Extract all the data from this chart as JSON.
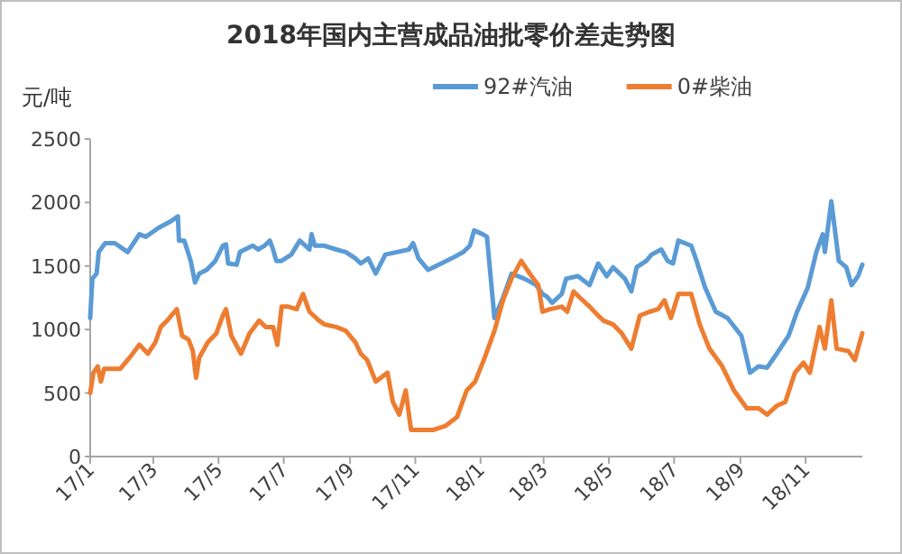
{
  "chart_data": {
    "type": "line",
    "title": "2018年国内主营成品油批零价差走势图",
    "ylabel": "元/吨",
    "legend": "top right",
    "grid": false,
    "marker": "none",
    "line_style": "solid",
    "xlim": [
      "2017-01-01",
      "2018-12-24"
    ],
    "ylim": [
      0,
      2500
    ],
    "yticks": [
      0,
      500,
      1000,
      1500,
      2000,
      2500
    ],
    "xticks": [
      {
        "value": "2017-01-01",
        "label": "17/1"
      },
      {
        "value": "2017-03-01",
        "label": "17/3"
      },
      {
        "value": "2017-05-01",
        "label": "17/5"
      },
      {
        "value": "2017-07-01",
        "label": "17/7"
      },
      {
        "value": "2017-09-01",
        "label": "17/9"
      },
      {
        "value": "2017-11-01",
        "label": "17/11"
      },
      {
        "value": "2018-01-01",
        "label": "18/1"
      },
      {
        "value": "2018-03-01",
        "label": "18/3"
      },
      {
        "value": "2018-05-01",
        "label": "18/5"
      },
      {
        "value": "2018-07-01",
        "label": "18/7"
      },
      {
        "value": "2018-09-01",
        "label": "18/9"
      },
      {
        "value": "2018-11-01",
        "label": "18/11"
      }
    ],
    "series": [
      {
        "name": "92#汽油",
        "color": "#5b9bd5",
        "x": [
          "2017-01-01",
          "2017-01-03",
          "2017-01-07",
          "2017-01-09",
          "2017-01-15",
          "2017-01-24",
          "2017-02-05",
          "2017-02-16",
          "2017-02-22",
          "2017-03-06",
          "2017-03-17",
          "2017-03-24",
          "2017-03-25",
          "2017-03-30",
          "2017-04-05",
          "2017-04-09",
          "2017-04-13",
          "2017-04-20",
          "2017-04-28",
          "2017-05-05",
          "2017-05-08",
          "2017-05-10",
          "2017-05-18",
          "2017-05-21",
          "2017-06-02",
          "2017-06-07",
          "2017-06-13",
          "2017-06-18",
          "2017-06-21",
          "2017-06-24",
          "2017-06-29",
          "2017-07-08",
          "2017-07-16",
          "2017-07-25",
          "2017-07-27",
          "2017-07-30",
          "2017-08-08",
          "2017-08-19",
          "2017-08-28",
          "2017-09-06",
          "2017-09-11",
          "2017-09-18",
          "2017-09-25",
          "2017-10-04",
          "2017-10-15",
          "2017-10-26",
          "2017-10-30",
          "2017-11-04",
          "2017-11-13",
          "2017-11-18",
          "2017-12-05",
          "2017-12-16",
          "2017-12-22",
          "2017-12-26",
          "2018-01-03",
          "2018-01-07",
          "2018-01-14",
          "2018-01-22",
          "2018-01-30",
          "2018-02-11",
          "2018-02-22",
          "2018-02-28",
          "2018-03-04",
          "2018-03-09",
          "2018-03-18",
          "2018-03-22",
          "2018-04-02",
          "2018-04-13",
          "2018-04-21",
          "2018-04-29",
          "2018-05-05",
          "2018-05-16",
          "2018-05-22",
          "2018-05-27",
          "2018-06-05",
          "2018-06-10",
          "2018-06-19",
          "2018-06-25",
          "2018-06-30",
          "2018-07-05",
          "2018-07-17",
          "2018-07-22",
          "2018-07-30",
          "2018-08-09",
          "2018-08-20",
          "2018-09-02",
          "2018-09-10",
          "2018-09-18",
          "2018-09-26",
          "2018-10-05",
          "2018-10-16",
          "2018-10-24",
          "2018-11-03",
          "2018-11-11",
          "2018-11-17",
          "2018-11-19",
          "2018-11-25",
          "2018-12-02",
          "2018-12-09",
          "2018-12-14",
          "2018-12-20",
          "2018-12-24"
        ],
        "values": [
          1090,
          1400,
          1440,
          1610,
          1680,
          1680,
          1610,
          1750,
          1730,
          1800,
          1850,
          1890,
          1700,
          1700,
          1540,
          1370,
          1440,
          1470,
          1540,
          1660,
          1670,
          1520,
          1510,
          1610,
          1660,
          1630,
          1660,
          1700,
          1630,
          1540,
          1540,
          1590,
          1700,
          1630,
          1750,
          1660,
          1660,
          1630,
          1610,
          1560,
          1520,
          1560,
          1440,
          1590,
          1610,
          1630,
          1680,
          1560,
          1470,
          1490,
          1560,
          1610,
          1660,
          1780,
          1750,
          1730,
          1090,
          1250,
          1440,
          1400,
          1350,
          1280,
          1260,
          1210,
          1280,
          1400,
          1420,
          1350,
          1520,
          1420,
          1490,
          1400,
          1300,
          1490,
          1540,
          1590,
          1630,
          1540,
          1520,
          1700,
          1660,
          1540,
          1330,
          1140,
          1090,
          950,
          660,
          710,
          700,
          810,
          950,
          1140,
          1330,
          1610,
          1750,
          1610,
          2010,
          1540,
          1490,
          1350,
          1420,
          1510
        ]
      },
      {
        "name": "0#柴油",
        "color": "#ed7d31",
        "x": [
          "2017-01-01",
          "2017-01-04",
          "2017-01-08",
          "2017-01-11",
          "2017-01-14",
          "2017-01-18",
          "2017-01-29",
          "2017-02-07",
          "2017-02-16",
          "2017-02-24",
          "2017-03-03",
          "2017-03-08",
          "2017-03-14",
          "2017-03-18",
          "2017-03-23",
          "2017-03-28",
          "2017-04-03",
          "2017-04-07",
          "2017-04-10",
          "2017-04-13",
          "2017-04-21",
          "2017-04-29",
          "2017-05-05",
          "2017-05-08",
          "2017-05-13",
          "2017-05-22",
          "2017-05-30",
          "2017-06-08",
          "2017-06-14",
          "2017-06-21",
          "2017-06-25",
          "2017-06-29",
          "2017-07-05",
          "2017-07-13",
          "2017-07-19",
          "2017-07-25",
          "2017-08-03",
          "2017-08-08",
          "2017-08-19",
          "2017-08-28",
          "2017-09-06",
          "2017-09-11",
          "2017-09-17",
          "2017-09-25",
          "2017-10-06",
          "2017-10-11",
          "2017-10-17",
          "2017-10-23",
          "2017-10-28",
          "2017-11-18",
          "2017-11-29",
          "2017-12-10",
          "2017-12-19",
          "2017-12-27",
          "2018-01-05",
          "2018-01-14",
          "2018-01-22",
          "2018-01-30",
          "2018-02-08",
          "2018-02-16",
          "2018-02-24",
          "2018-02-28",
          "2018-03-07",
          "2018-03-18",
          "2018-03-23",
          "2018-03-29",
          "2018-04-04",
          "2018-04-13",
          "2018-04-21",
          "2018-04-26",
          "2018-05-05",
          "2018-05-13",
          "2018-05-22",
          "2018-05-30",
          "2018-06-08",
          "2018-06-16",
          "2018-06-22",
          "2018-06-28",
          "2018-07-05",
          "2018-07-17",
          "2018-07-25",
          "2018-08-03",
          "2018-08-15",
          "2018-08-26",
          "2018-09-07",
          "2018-09-18",
          "2018-09-26",
          "2018-10-05",
          "2018-10-13",
          "2018-10-22",
          "2018-10-30",
          "2018-11-05",
          "2018-11-14",
          "2018-11-19",
          "2018-11-25",
          "2018-11-30",
          "2018-12-11",
          "2018-12-17",
          "2018-12-24"
        ],
        "values": [
          500,
          660,
          710,
          590,
          690,
          690,
          690,
          780,
          880,
          810,
          900,
          1020,
          1070,
          1110,
          1160,
          950,
          920,
          830,
          620,
          780,
          900,
          970,
          1110,
          1160,
          950,
          810,
          970,
          1070,
          1020,
          1020,
          880,
          1180,
          1180,
          1160,
          1280,
          1140,
          1070,
          1040,
          1020,
          990,
          900,
          810,
          760,
          590,
          660,
          430,
          330,
          520,
          210,
          210,
          240,
          310,
          520,
          590,
          780,
          990,
          1230,
          1400,
          1540,
          1440,
          1350,
          1140,
          1160,
          1180,
          1140,
          1300,
          1250,
          1180,
          1110,
          1070,
          1040,
          970,
          850,
          1110,
          1140,
          1160,
          1230,
          1090,
          1280,
          1280,
          1040,
          850,
          710,
          520,
          380,
          380,
          330,
          400,
          430,
          660,
          740,
          660,
          1020,
          850,
          1230,
          850,
          830,
          760,
          970
        ]
      }
    ]
  }
}
